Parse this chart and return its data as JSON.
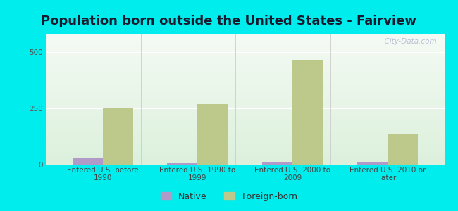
{
  "title": "Population born outside the United States - Fairview",
  "categories": [
    "Entered U.S. before\n1990",
    "Entered U.S. 1990 to\n1999",
    "Entered U.S. 2000 to\n2009",
    "Entered U.S. 2010 or\nlater"
  ],
  "native_values": [
    30,
    5,
    10,
    10
  ],
  "foreign_values": [
    248,
    268,
    460,
    138
  ],
  "native_color": "#b09ac8",
  "foreign_color": "#bcc98a",
  "background_outer": "#00eded",
  "ylim": [
    0,
    580
  ],
  "yticks": [
    0,
    250,
    500
  ],
  "bar_width": 0.32,
  "title_fontsize": 13,
  "tick_fontsize": 7.5,
  "legend_fontsize": 9,
  "watermark": "  City-Data.com"
}
